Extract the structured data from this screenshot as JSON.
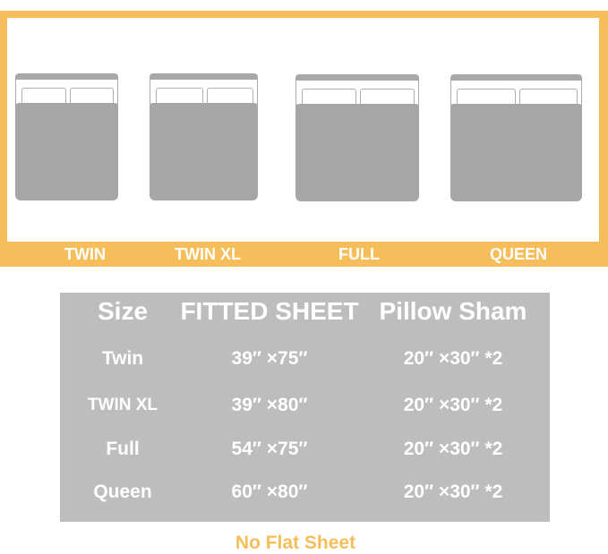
{
  "beds": [
    {
      "label": "TWIN"
    },
    {
      "label": "TWIN XL"
    },
    {
      "label": "FULL"
    },
    {
      "label": "QUEEN"
    }
  ],
  "table": {
    "headers": [
      "Size",
      "FITTED SHEET",
      "Pillow Sham"
    ],
    "rows": [
      [
        "Twin",
        "39″ ×75″",
        "20″ ×30″ *2"
      ],
      [
        "TWIN XL",
        "39″ ×80″",
        "20″ ×30″ *2"
      ],
      [
        "Full",
        "54″ ×75″",
        "20″ ×30″ *2"
      ],
      [
        "Queen",
        "60″ ×80″",
        "20″ ×30″ *2"
      ]
    ]
  },
  "note": "No Flat Sheet",
  "colors": {
    "accent": "#f5be5a",
    "bed": "#a6a6a6",
    "table_bg": "#bdbdbd"
  }
}
